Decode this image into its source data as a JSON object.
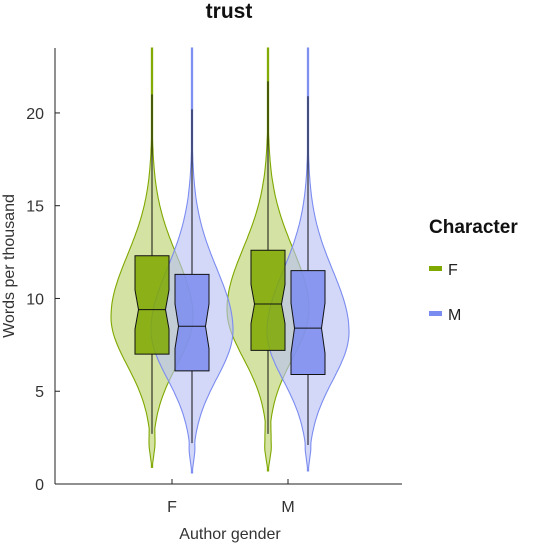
{
  "chart_data": {
    "type": "violin",
    "title": "trust",
    "xlabel": "Author gender",
    "ylabel": "Words per thousand",
    "categories": [
      "F",
      "M"
    ],
    "ylim": [
      0,
      23.5
    ],
    "yticks": [
      0,
      5,
      10,
      15,
      20
    ],
    "grid": false,
    "legend": {
      "title": "Character",
      "placement": "right",
      "entries": [
        {
          "name": "F",
          "color": "#7fa800"
        },
        {
          "name": "M",
          "color": "#7b8cf0"
        }
      ]
    },
    "series": [
      {
        "name": "F",
        "color": "#7fa800",
        "fill": "#b9d06a",
        "groups": [
          {
            "category": "F",
            "min": 0.9,
            "whisker_low": 2.7,
            "q1": 7.0,
            "median": 9.4,
            "q3": 12.3,
            "whisker_high": 21.0,
            "max": 23.5,
            "notch": 0.35,
            "peak": 9.0
          },
          {
            "category": "M",
            "min": 0.7,
            "whisker_low": 2.7,
            "q1": 7.2,
            "median": 9.7,
            "q3": 12.6,
            "whisker_high": 21.7,
            "max": 23.5,
            "notch": 0.35,
            "peak": 9.4
          }
        ]
      },
      {
        "name": "M",
        "color": "#7b8cf0",
        "fill": "#b8c0f6",
        "groups": [
          {
            "category": "F",
            "min": 0.6,
            "whisker_low": 2.2,
            "q1": 6.1,
            "median": 8.5,
            "q3": 11.3,
            "whisker_high": 20.2,
            "max": 23.5,
            "notch": 0.4,
            "peak": 8.3
          },
          {
            "category": "M",
            "min": 0.7,
            "whisker_low": 2.1,
            "q1": 5.9,
            "median": 8.4,
            "q3": 11.5,
            "whisker_high": 20.9,
            "max": 23.5,
            "notch": 0.45,
            "peak": 8.2
          }
        ]
      }
    ]
  }
}
